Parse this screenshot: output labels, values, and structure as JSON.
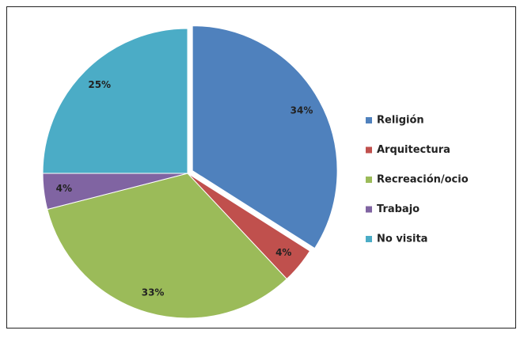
{
  "chart_data": {
    "type": "pie",
    "categories": [
      "Religión",
      "Arquitectura",
      "Recreación/ocio",
      "Trabajo",
      "No visita"
    ],
    "values": [
      34,
      4,
      33,
      4,
      25
    ],
    "value_labels": [
      "34%",
      "4%",
      "33%",
      "4%",
      "25%"
    ],
    "colors": [
      "#4f81bd",
      "#c0504d",
      "#9bbb59",
      "#8064a2",
      "#4bacc6"
    ],
    "exploded": [
      true,
      false,
      false,
      false,
      false
    ],
    "legend": "right"
  }
}
